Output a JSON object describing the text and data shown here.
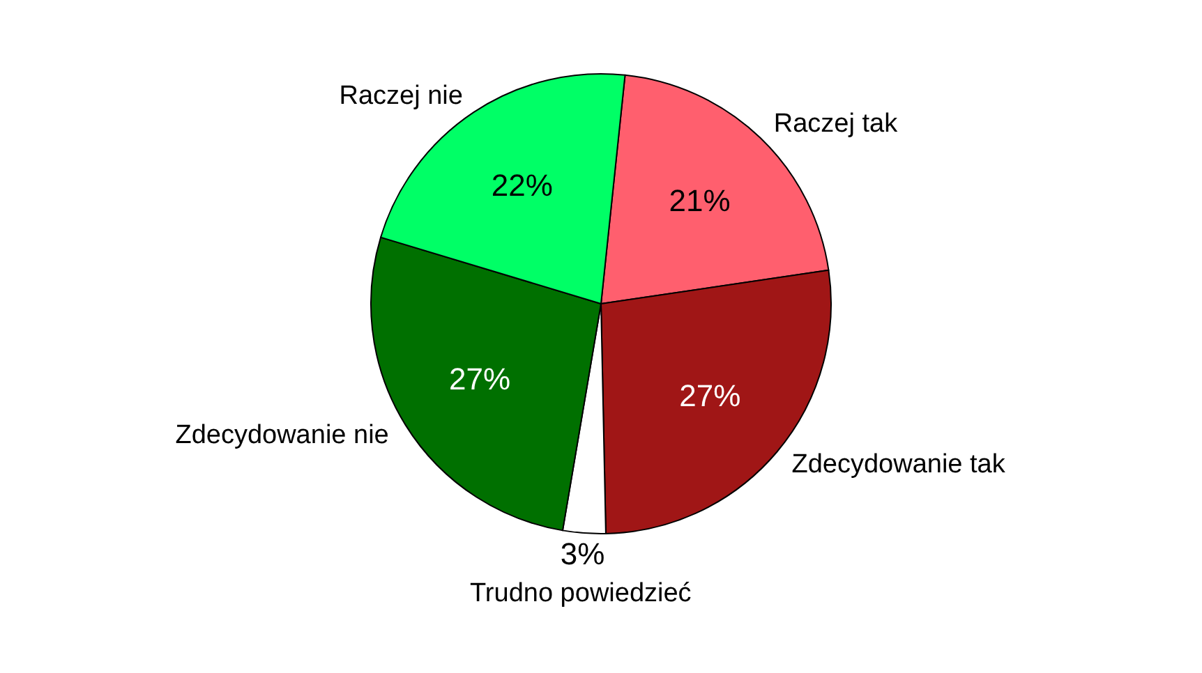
{
  "chart_data": {
    "type": "pie",
    "categories": [
      "Raczej tak",
      "Zdecydowanie tak",
      "Trudno powiedzieć",
      "Zdecydowanie nie",
      "Raczej nie"
    ],
    "values": [
      21,
      27,
      3,
      27,
      22
    ],
    "colors": [
      "#ff5f6e",
      "#a01616",
      "#ffffff",
      "#007000",
      "#00ff66"
    ],
    "value_labels": [
      "21%",
      "27%",
      "3%",
      "27%",
      "22%"
    ]
  }
}
